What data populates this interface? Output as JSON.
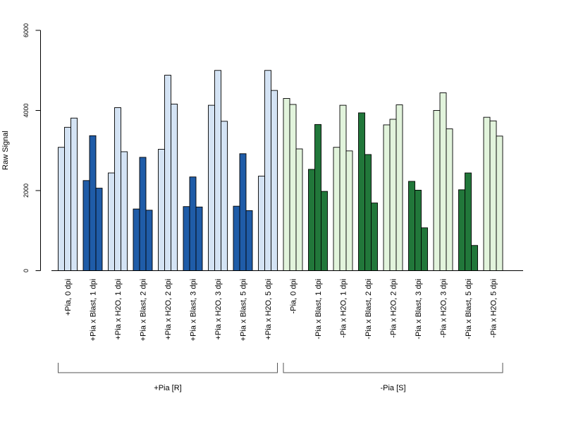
{
  "chart_data": {
    "type": "bar",
    "ylabel": "Raw Signal",
    "ylim": [
      0,
      6000
    ],
    "yticks": [
      0,
      2000,
      4000,
      6000
    ],
    "grid": false,
    "categories": [
      "+Pia, 0 dpi",
      "+Pia x Blast, 1 dpi",
      "+Pia x H2O, 1 dpi",
      "+Pia x Blast, 2 dpi",
      "+Pia x H2O, 2 dpi",
      "+Pia x Blast, 3 dpi",
      "+Pia x H2O, 3 dpi",
      "+Pia x Blast, 5 dpi",
      "+Pia x H2O, 5 dpi",
      "-Pia, 0 dpi",
      "-Pia x Blast, 1 dpi",
      "-Pia x H2O, 1 dpi",
      "-Pia x Blast, 2 dpi",
      "-Pia x H2O, 2 dpi",
      "-Pia x Blast, 3 dpi",
      "-Pia x H2O, 3 dpi",
      "-Pia x Blast, 5 dpi",
      "-Pia x H2O, 5 dpi"
    ],
    "replicates_per_category": 3,
    "values": [
      [
        3080,
        3580,
        3810
      ],
      [
        2250,
        3370,
        2060
      ],
      [
        2440,
        4070,
        2970
      ],
      [
        1540,
        2830,
        1510
      ],
      [
        3030,
        4880,
        4160
      ],
      [
        1600,
        2340,
        1590
      ],
      [
        4130,
        5000,
        3730
      ],
      [
        1610,
        2920,
        1500
      ],
      [
        2360,
        5000,
        4500
      ],
      [
        4300,
        4150,
        3040
      ],
      [
        2530,
        3650,
        1980
      ],
      [
        3080,
        4130,
        2990
      ],
      [
        3940,
        2900,
        1690
      ],
      [
        3640,
        3780,
        4140
      ],
      [
        2230,
        2010,
        1070
      ],
      [
        4000,
        4440,
        3540
      ],
      [
        2020,
        2440,
        630
      ],
      [
        3830,
        3740,
        3360
      ]
    ],
    "bar_colors": [
      "#d4e3f4",
      "#1f5ca8",
      "#d4e3f4",
      "#1f5ca8",
      "#d4e3f4",
      "#1f5ca8",
      "#d4e3f4",
      "#1f5ca8",
      "#d4e3f4",
      "#e2f4dc",
      "#21773a",
      "#e2f4dc",
      "#21773a",
      "#e2f4dc",
      "#21773a",
      "#e2f4dc",
      "#21773a",
      "#e2f4dc"
    ],
    "groups": [
      {
        "label": "+Pia [R]",
        "from": 0,
        "to": 8
      },
      {
        "label": "-Pia [S]",
        "from": 9,
        "to": 17
      }
    ]
  }
}
